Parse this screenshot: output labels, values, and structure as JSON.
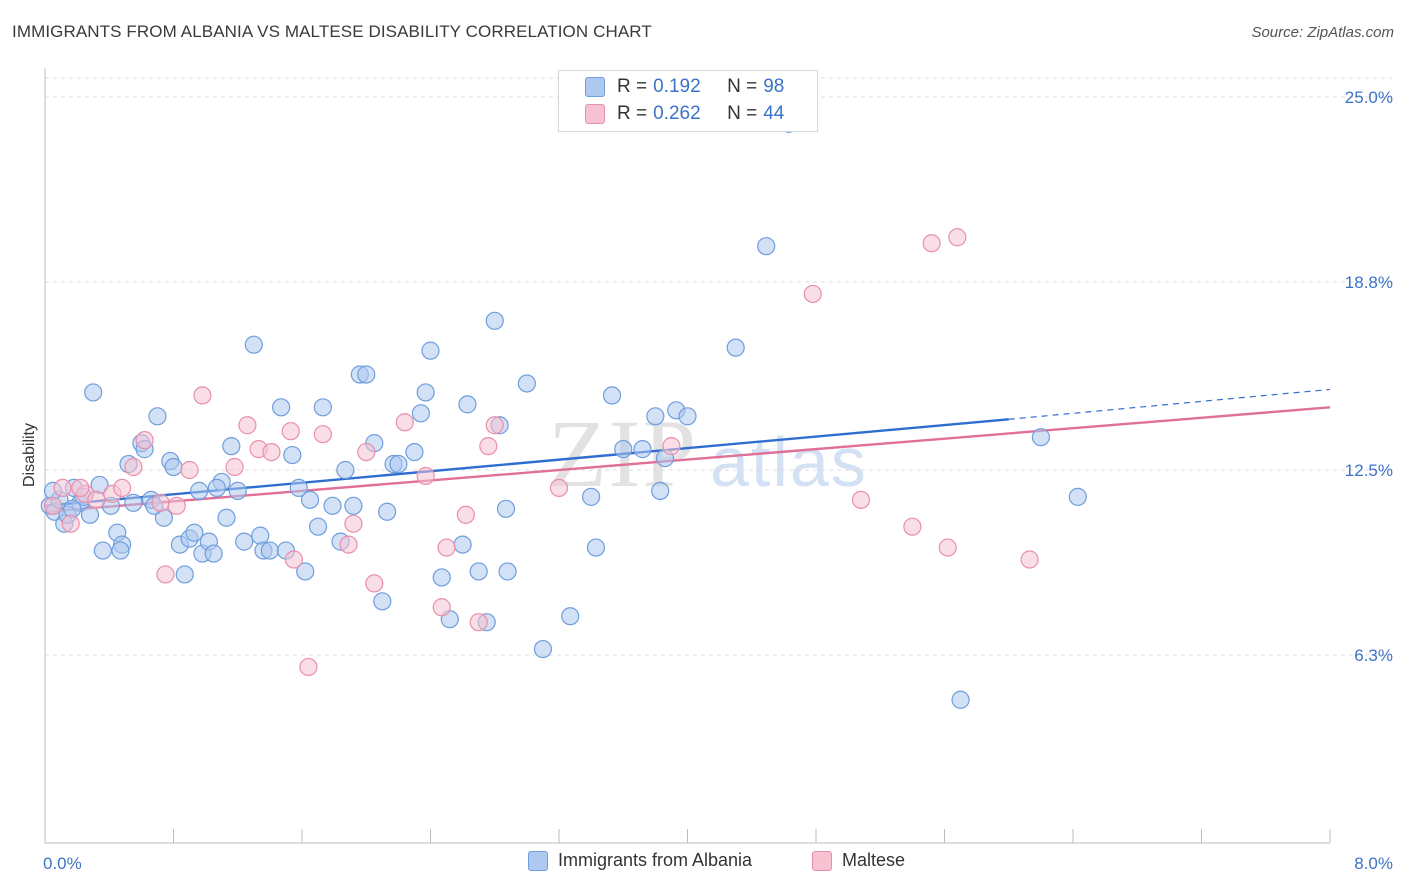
{
  "title": "IMMIGRANTS FROM ALBANIA VS MALTESE DISABILITY CORRELATION CHART",
  "source": "Source: ZipAtlas.com",
  "watermark": {
    "zip": "ZIP",
    "atlas": "atlas"
  },
  "legend": {
    "r_label": "R =",
    "n_label": "N =",
    "rows": [
      {
        "r": "0.192",
        "n": "98",
        "color": "#adc9ef",
        "border": "#6f9edd"
      },
      {
        "r": "0.262",
        "n": "44",
        "color": "#f6c2d2",
        "border": "#e98fac"
      }
    ]
  },
  "bottom_legend": [
    {
      "label": "Immigrants from Albania",
      "color": "#adc9ef",
      "border": "#6f9edd"
    },
    {
      "label": "Maltese",
      "color": "#f6c2d2",
      "border": "#e98fac"
    }
  ],
  "chart_data": {
    "type": "scatter",
    "title": "IMMIGRANTS FROM ALBANIA VS MALTESE DISABILITY CORRELATION CHART",
    "xlabel": "",
    "ylabel": "Disability",
    "xlim": [
      0.0,
      8.0
    ],
    "ylim": [
      0.0,
      25.0
    ],
    "x_tick_labels": [
      "0.0%",
      "8.0%"
    ],
    "y_ticks": [
      6.3,
      12.5,
      18.8,
      25.0
    ],
    "y_tick_labels": [
      "6.3%",
      "12.5%",
      "18.8%",
      "25.0%"
    ],
    "grid": "horizontal dashed",
    "legend_position": "top-center",
    "series": [
      {
        "name": "Immigrants from Albania",
        "color": "#6f9edd",
        "fill": "#adc9ef",
        "trend": {
          "x": [
            0.0,
            6.0
          ],
          "y": [
            11.3,
            14.2
          ],
          "dashed_ext": [
            6.0,
            8.0,
            14.2,
            15.2
          ]
        },
        "points": [
          [
            0.03,
            11.3
          ],
          [
            0.06,
            11.1
          ],
          [
            0.09,
            11.5
          ],
          [
            0.12,
            10.7
          ],
          [
            0.14,
            11.0
          ],
          [
            0.18,
            11.9
          ],
          [
            0.22,
            11.4
          ],
          [
            0.24,
            11.6
          ],
          [
            0.28,
            11.0
          ],
          [
            0.3,
            15.1
          ],
          [
            0.34,
            12.0
          ],
          [
            0.36,
            9.8
          ],
          [
            0.41,
            11.3
          ],
          [
            0.45,
            10.4
          ],
          [
            0.48,
            10.0
          ],
          [
            0.52,
            12.7
          ],
          [
            0.55,
            11.4
          ],
          [
            0.6,
            13.4
          ],
          [
            0.62,
            13.2
          ],
          [
            0.66,
            11.5
          ],
          [
            0.7,
            14.3
          ],
          [
            0.74,
            10.9
          ],
          [
            0.78,
            12.8
          ],
          [
            0.8,
            12.6
          ],
          [
            0.84,
            10.0
          ],
          [
            0.87,
            9.0
          ],
          [
            0.9,
            10.2
          ],
          [
            0.93,
            10.4
          ],
          [
            0.96,
            11.8
          ],
          [
            0.98,
            9.7
          ],
          [
            1.02,
            10.1
          ],
          [
            1.05,
            9.7
          ],
          [
            1.1,
            12.1
          ],
          [
            1.13,
            10.9
          ],
          [
            1.16,
            13.3
          ],
          [
            1.2,
            11.8
          ],
          [
            1.24,
            10.1
          ],
          [
            1.3,
            16.7
          ],
          [
            1.34,
            10.3
          ],
          [
            1.36,
            9.8
          ],
          [
            1.4,
            9.8
          ],
          [
            1.47,
            14.6
          ],
          [
            1.5,
            9.8
          ],
          [
            1.54,
            13.0
          ],
          [
            1.58,
            11.9
          ],
          [
            1.62,
            9.1
          ],
          [
            1.65,
            11.5
          ],
          [
            1.7,
            10.6
          ],
          [
            1.73,
            14.6
          ],
          [
            1.79,
            11.3
          ],
          [
            1.84,
            10.1
          ],
          [
            1.87,
            12.5
          ],
          [
            1.92,
            11.3
          ],
          [
            1.96,
            15.7
          ],
          [
            2.0,
            15.7
          ],
          [
            2.05,
            13.4
          ],
          [
            2.1,
            8.1
          ],
          [
            2.13,
            11.1
          ],
          [
            2.17,
            12.7
          ],
          [
            2.2,
            12.7
          ],
          [
            2.3,
            13.1
          ],
          [
            2.34,
            14.4
          ],
          [
            2.37,
            15.1
          ],
          [
            2.4,
            16.5
          ],
          [
            2.47,
            8.9
          ],
          [
            2.52,
            7.5
          ],
          [
            2.6,
            10.0
          ],
          [
            2.63,
            14.7
          ],
          [
            2.7,
            9.1
          ],
          [
            2.75,
            7.4
          ],
          [
            2.8,
            17.5
          ],
          [
            2.83,
            14.0
          ],
          [
            2.87,
            11.2
          ],
          [
            3.0,
            15.4
          ],
          [
            3.1,
            6.5
          ],
          [
            3.27,
            7.6
          ],
          [
            3.4,
            11.6
          ],
          [
            3.43,
            9.9
          ],
          [
            3.53,
            15.0
          ],
          [
            3.6,
            13.2
          ],
          [
            3.72,
            13.2
          ],
          [
            3.8,
            14.3
          ],
          [
            3.83,
            11.8
          ],
          [
            3.86,
            12.9
          ],
          [
            3.93,
            14.5
          ],
          [
            4.0,
            14.3
          ],
          [
            4.3,
            16.6
          ],
          [
            4.49,
            20.0
          ],
          [
            4.63,
            24.1
          ],
          [
            5.7,
            4.8
          ],
          [
            6.2,
            13.6
          ],
          [
            6.43,
            11.6
          ],
          [
            0.05,
            11.8
          ],
          [
            0.17,
            11.2
          ],
          [
            0.47,
            9.8
          ],
          [
            0.68,
            11.3
          ],
          [
            1.07,
            11.9
          ],
          [
            2.88,
            9.1
          ]
        ]
      },
      {
        "name": "Maltese",
        "color": "#e98fac",
        "fill": "#f6c2d2",
        "trend": {
          "x": [
            0.0,
            8.0
          ],
          "y": [
            11.1,
            14.6
          ]
        },
        "points": [
          [
            0.05,
            11.3
          ],
          [
            0.11,
            11.9
          ],
          [
            0.16,
            10.7
          ],
          [
            0.25,
            11.7
          ],
          [
            0.32,
            11.5
          ],
          [
            0.42,
            11.7
          ],
          [
            0.48,
            11.9
          ],
          [
            0.55,
            12.6
          ],
          [
            0.62,
            13.5
          ],
          [
            0.72,
            11.4
          ],
          [
            0.75,
            9.0
          ],
          [
            0.82,
            11.3
          ],
          [
            0.9,
            12.5
          ],
          [
            0.98,
            15.0
          ],
          [
            1.18,
            12.6
          ],
          [
            1.26,
            14.0
          ],
          [
            1.33,
            13.2
          ],
          [
            1.41,
            13.1
          ],
          [
            1.53,
            13.8
          ],
          [
            1.55,
            9.5
          ],
          [
            1.64,
            5.9
          ],
          [
            1.73,
            13.7
          ],
          [
            1.89,
            10.0
          ],
          [
            1.92,
            10.7
          ],
          [
            2.0,
            13.1
          ],
          [
            2.05,
            8.7
          ],
          [
            2.24,
            14.1
          ],
          [
            2.37,
            12.3
          ],
          [
            2.47,
            7.9
          ],
          [
            2.5,
            9.9
          ],
          [
            2.62,
            11.0
          ],
          [
            2.7,
            7.4
          ],
          [
            2.76,
            13.3
          ],
          [
            2.8,
            14.0
          ],
          [
            3.2,
            11.9
          ],
          [
            3.9,
            13.3
          ],
          [
            4.78,
            18.4
          ],
          [
            5.08,
            11.5
          ],
          [
            5.4,
            10.6
          ],
          [
            5.52,
            20.1
          ],
          [
            5.62,
            9.9
          ],
          [
            5.68,
            20.3
          ],
          [
            6.13,
            9.5
          ],
          [
            0.22,
            11.9
          ]
        ]
      }
    ]
  }
}
